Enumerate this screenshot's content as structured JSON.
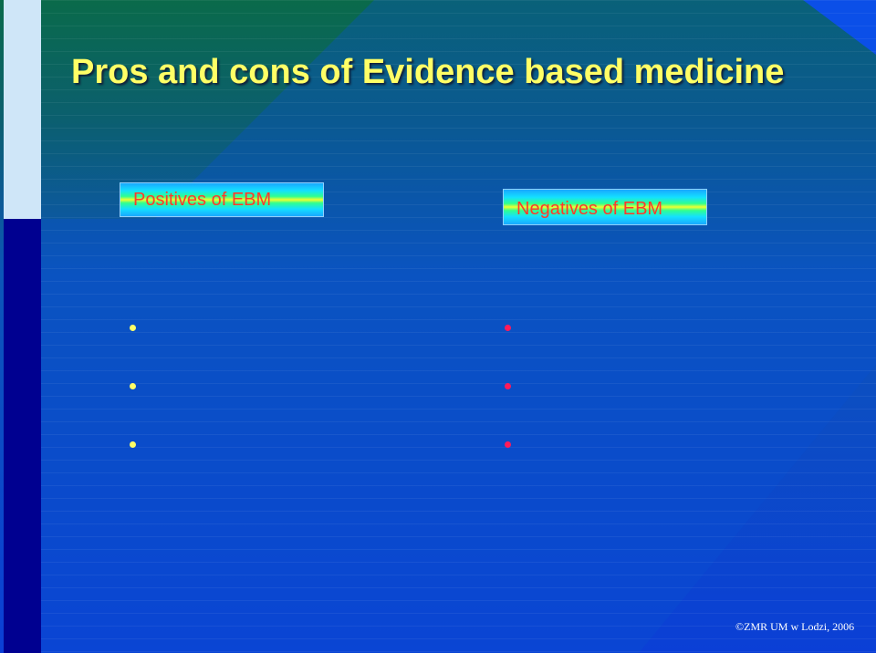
{
  "slide": {
    "title": "Pros and cons of Evidence based medicine",
    "columns": [
      {
        "heading": "Positives of EBM",
        "bullets": [
          "",
          "",
          ""
        ]
      },
      {
        "heading": "Negatives of EBM",
        "bullets": [
          "",
          "",
          ""
        ]
      }
    ],
    "footer": "©ZMR UM w Lodzi, 2006"
  },
  "colors": {
    "title": "#ffff66",
    "heading_text": "#ff3a2a",
    "bullet_left": "#ffff66",
    "bullet_right": "#ff1a5a"
  }
}
